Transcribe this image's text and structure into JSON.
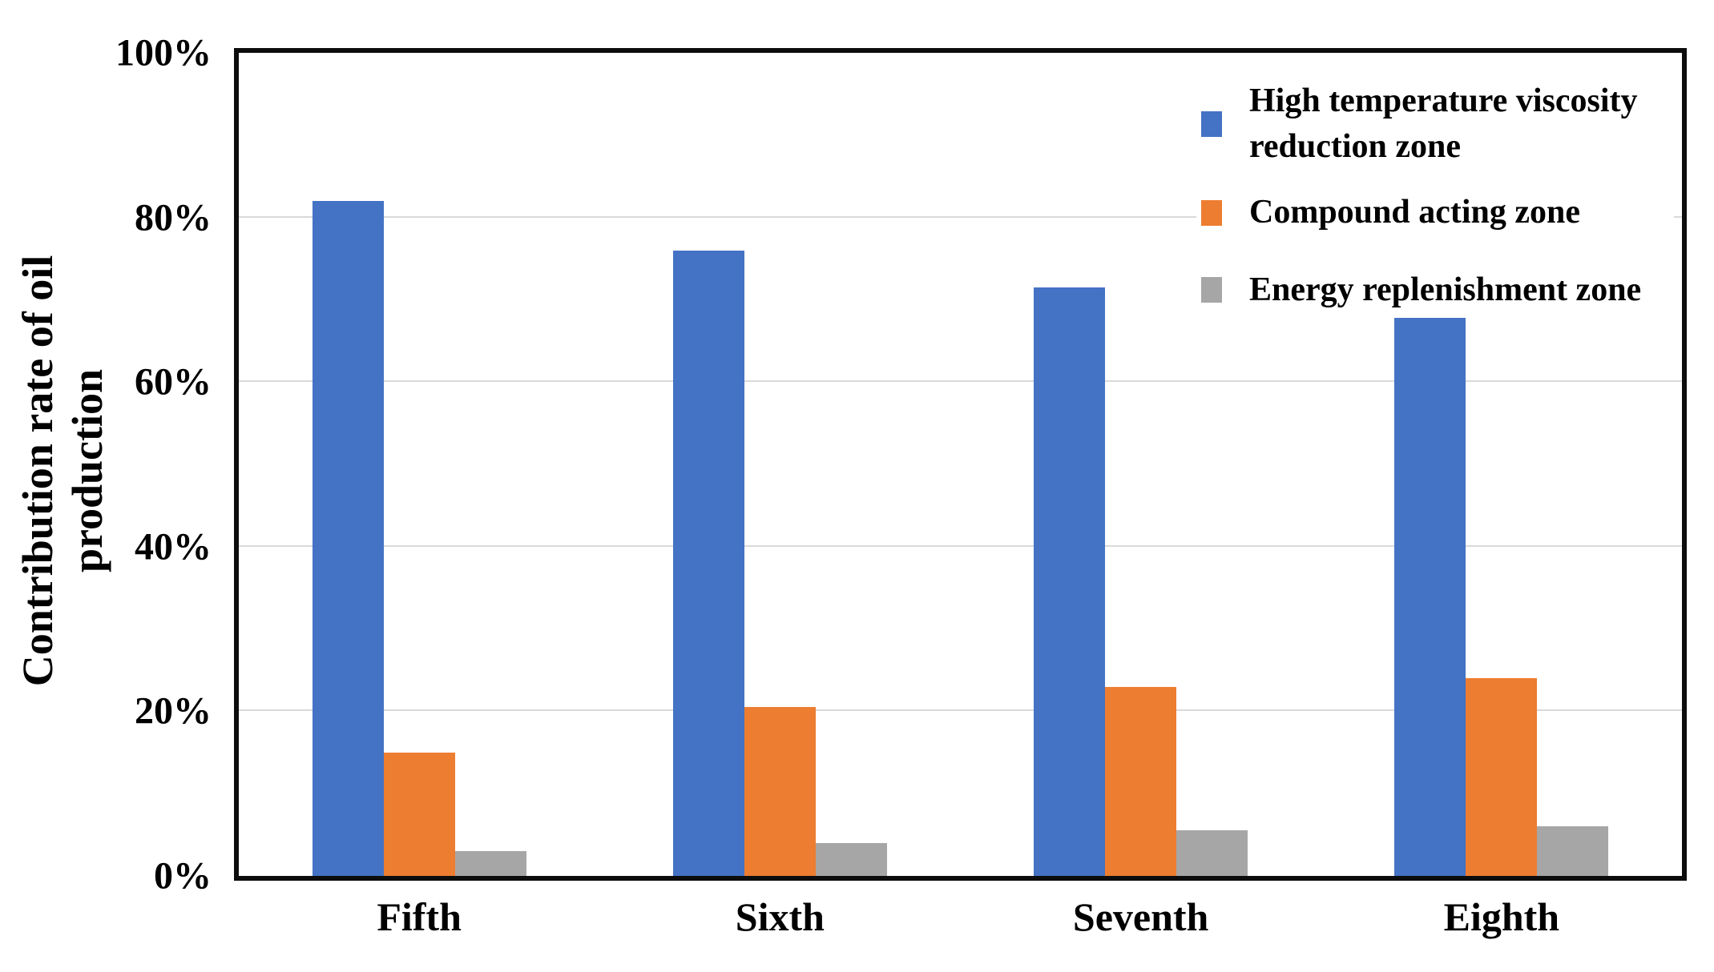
{
  "figure": {
    "y_axis_title_line1": "Contribution rate of oil",
    "y_axis_title_line2": "production"
  },
  "colors": {
    "series_blue": "#4472C4",
    "series_orange": "#ED7D31",
    "series_gray": "#A6A6A6",
    "gridline": "#D9D9D9",
    "frame": "#0D0D0D"
  },
  "chart_data": {
    "type": "bar",
    "title": "",
    "xlabel": "",
    "ylabel": "Contribution rate of oil production",
    "categories": [
      "Fifth",
      "Sixth",
      "Seventh",
      "Eighth"
    ],
    "series": [
      {
        "name": "High temperature viscosity reduction zone",
        "color": "#4472C4",
        "values": [
          82,
          76,
          71.5,
          69.5
        ]
      },
      {
        "name": "Compound acting zone",
        "color": "#ED7D31",
        "values": [
          15,
          20.5,
          23,
          24
        ]
      },
      {
        "name": "Energy replenishment zone",
        "color": "#A6A6A6",
        "values": [
          3,
          4,
          5.5,
          6
        ]
      }
    ],
    "ylim": [
      0,
      100
    ],
    "yticks": [
      0,
      20,
      40,
      60,
      80,
      100
    ],
    "ytick_labels": [
      "0%",
      "20%",
      "40%",
      "60%",
      "80%",
      "100%"
    ],
    "grid": true,
    "legend_position": "top-right-inside"
  }
}
